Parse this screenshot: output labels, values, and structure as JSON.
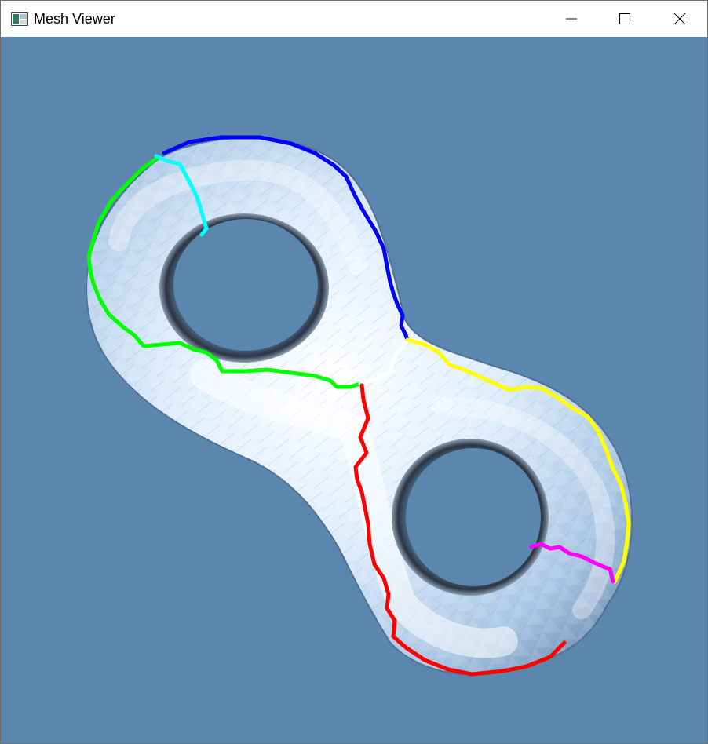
{
  "window": {
    "title": "Mesh Viewer",
    "icon": "app-window-icon",
    "controls": {
      "minimize": "minimize-icon",
      "maximize": "maximize-icon",
      "close": "close-icon"
    }
  },
  "viewport": {
    "background_color": "#5b86ae",
    "mesh": "double-torus",
    "mesh_color": "#cfe3f7",
    "path_colors": [
      "#0000ff",
      "#00ff00",
      "#00ffff",
      "#ffffff",
      "#ffff00",
      "#ff0000",
      "#ff00ff"
    ]
  }
}
